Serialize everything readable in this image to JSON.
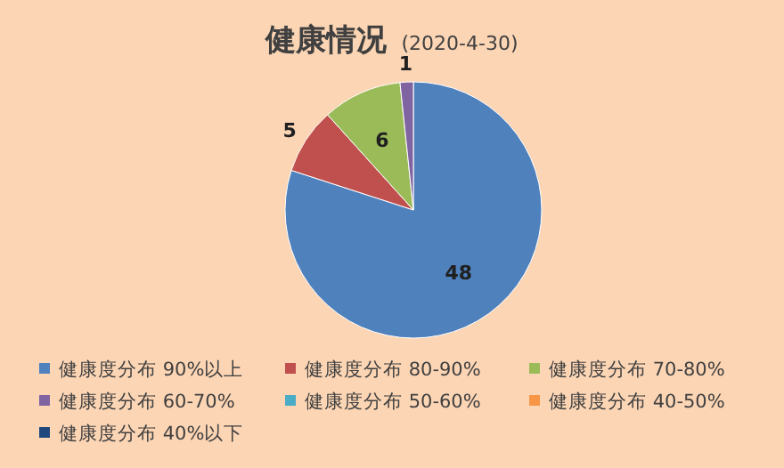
{
  "chart_data": {
    "type": "pie",
    "title": "健康情况",
    "subtitle": "(2020-4-30)",
    "categories": [
      "健康度分布 90%以上",
      "健康度分布 80-90%",
      "健康度分布 70-80%",
      "健康度分布 60-70%",
      "健康度分布 50-60%",
      "健康度分布 40-50%",
      "健康度分布 40%以下"
    ],
    "values": [
      48,
      5,
      6,
      1,
      null,
      null,
      null
    ],
    "colors": [
      "#4f81bd",
      "#c0504d",
      "#9bbb59",
      "#8064a2",
      "#4bacc6",
      "#f79646",
      "#1f497d"
    ],
    "data_labels": true,
    "legend": "bottom"
  }
}
